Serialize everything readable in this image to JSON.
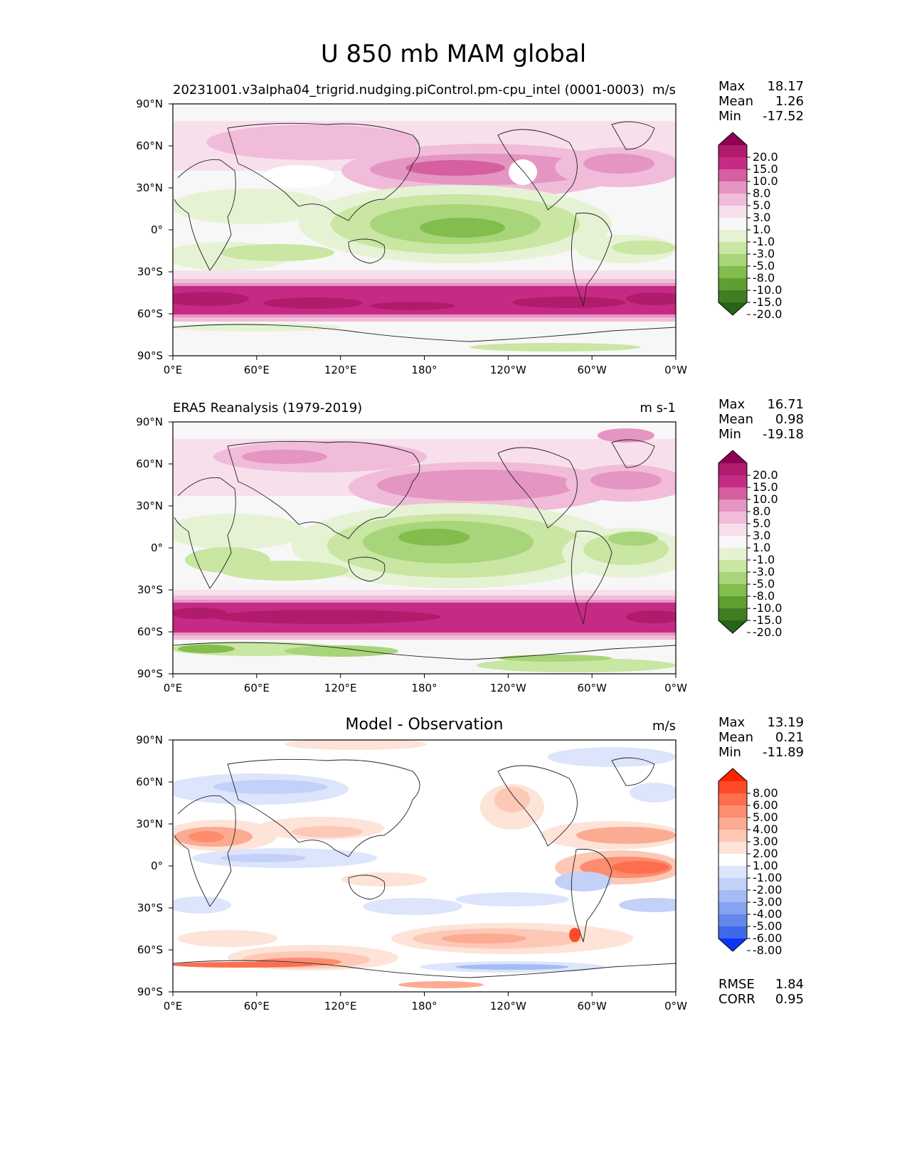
{
  "title": "U 850 mb MAM global",
  "axes": {
    "lon_ticks": [
      "0°E",
      "60°E",
      "120°E",
      "180°",
      "120°W",
      "60°W",
      "0°W"
    ],
    "lat_ticks": [
      "90°N",
      "60°N",
      "30°N",
      "0°",
      "30°S",
      "60°S",
      "90°S"
    ]
  },
  "panels": [
    {
      "title": "20231001.v3alpha04_trigrid.nudging.piControl.pm-cpu_intel (0001-0003)",
      "units": "m/s",
      "stats": [
        {
          "label": "Max",
          "value": "18.17"
        },
        {
          "label": "Mean",
          "value": "1.26"
        },
        {
          "label": "Min",
          "value": "-17.52"
        }
      ],
      "colorbar_levels": [
        "20.0",
        "15.0",
        "10.0",
        "8.0",
        "5.0",
        "3.0",
        "1.0",
        "-1.0",
        "-3.0",
        "-5.0",
        "-8.0",
        "-10.0",
        "-15.0",
        "-20.0"
      ]
    },
    {
      "title": "ERA5 Reanalysis (1979-2019)",
      "units": "m s-1",
      "stats": [
        {
          "label": "Max",
          "value": "16.71"
        },
        {
          "label": "Mean",
          "value": "0.98"
        },
        {
          "label": "Min",
          "value": "-19.18"
        }
      ],
      "colorbar_levels": [
        "20.0",
        "15.0",
        "10.0",
        "8.0",
        "5.0",
        "3.0",
        "1.0",
        "-1.0",
        "-3.0",
        "-5.0",
        "-8.0",
        "-10.0",
        "-15.0",
        "-20.0"
      ]
    },
    {
      "title": "Model - Observation",
      "units": "m/s",
      "stats": [
        {
          "label": "Max",
          "value": "13.19"
        },
        {
          "label": "Mean",
          "value": "0.21"
        },
        {
          "label": "Min",
          "value": "-11.89"
        }
      ],
      "extra_stats": [
        {
          "label": "RMSE",
          "value": "1.84"
        },
        {
          "label": "CORR",
          "value": "0.95"
        }
      ],
      "colorbar_levels": [
        "8.00",
        "6.00",
        "5.00",
        "4.00",
        "3.00",
        "2.00",
        "1.00",
        "-1.00",
        "-2.00",
        "-3.00",
        "-4.00",
        "-5.00",
        "-6.00",
        "-8.00"
      ]
    }
  ],
  "colors": {
    "piyg": [
      "#8e0152",
      "#b01b6c",
      "#c72a84",
      "#d65f9f",
      "#e595c1",
      "#f0bcd9",
      "#f8dfec",
      "#f7f7f7",
      "#e6f2d4",
      "#c9e6a2",
      "#a8d579",
      "#82bd4d",
      "#5e9e33",
      "#3e7d22",
      "#276419"
    ],
    "diff": [
      "#ff2200",
      "#ff4a2a",
      "#fd6e4f",
      "#fc8d6e",
      "#fcab93",
      "#fdc8b6",
      "#fde3d8",
      "#ffffff",
      "#dce5fb",
      "#c3d1f8",
      "#a6bbf4",
      "#86a2f0",
      "#6487ec",
      "#3f68ea",
      "#0a35f5"
    ]
  }
}
